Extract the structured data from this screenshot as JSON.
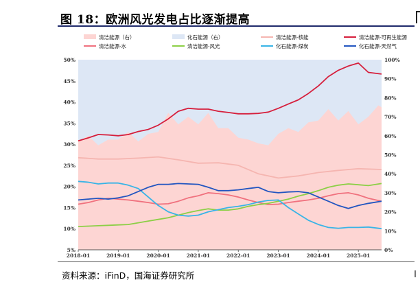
{
  "figure": {
    "title": "图 18：欧洲风光发电占比逐渐提高",
    "source": "资料来源：iFinD，国海证券研究所"
  },
  "colors": {
    "clean_right_area": "#fdd5d3",
    "fossil_right_area": "#dde7f5",
    "nuclear": "#f5b5b0",
    "renewable": "#d61f3c",
    "hydro": "#f0717e",
    "wind_solar": "#8ccf46",
    "coal": "#38b4e6",
    "gas": "#2255c0",
    "axis_text": "#333333",
    "title_rule": "#1f2a6b"
  },
  "chart_data": {
    "type": "line+area",
    "xlabel": "",
    "ylabel_left": "",
    "ylabel_right": "",
    "x_ticks": [
      "2018-01",
      "2019-01",
      "2020-01",
      "2021-01",
      "2022-01",
      "2023-01",
      "2024-01",
      "2025-01"
    ],
    "x_range": [
      2018.0,
      2025.58
    ],
    "y_left_ticks": [
      "50%",
      "45%",
      "40%",
      "35%",
      "30%",
      "25%",
      "20%",
      "15%",
      "10%",
      "5%"
    ],
    "y_left_range": [
      5,
      50
    ],
    "y_right_ticks": [
      "100%",
      "90%",
      "80%",
      "70%",
      "60%",
      "50%",
      "40%",
      "30%",
      "20%",
      "10%",
      "0%"
    ],
    "y_right_range": [
      0,
      100
    ],
    "legend": [
      {
        "label": "清洁能源（右）",
        "kind": "area",
        "series": "clean_right"
      },
      {
        "label": "化石能源（右）",
        "kind": "area",
        "series": "fossil_right"
      },
      {
        "label": "清洁能源-核能",
        "kind": "line",
        "series": "nuclear"
      },
      {
        "label": "清洁能源-可再生能源",
        "kind": "line",
        "series": "renewable"
      },
      {
        "label": "清洁能源-水",
        "kind": "line",
        "series": "hydro"
      },
      {
        "label": "清洁能源-风光",
        "kind": "line",
        "series": "wind_solar"
      },
      {
        "label": "化石能源-煤炭",
        "kind": "line",
        "series": "coal"
      },
      {
        "label": "化石能源-天然气",
        "kind": "line",
        "series": "gas"
      }
    ],
    "series": {
      "clean_right": {
        "name": "清洁能源（右）",
        "axis": "right",
        "x": [
          2018.0,
          2018.25,
          2018.5,
          2018.75,
          2019.0,
          2019.25,
          2019.5,
          2019.75,
          2020.0,
          2020.25,
          2020.5,
          2020.75,
          2021.0,
          2021.25,
          2021.5,
          2021.75,
          2022.0,
          2022.25,
          2022.5,
          2022.75,
          2023.0,
          2023.25,
          2023.5,
          2023.75,
          2024.0,
          2024.25,
          2024.5,
          2024.75,
          2025.0,
          2025.25,
          2025.5,
          2025.58
        ],
        "values": [
          57,
          60,
          55,
          58,
          58,
          62,
          57,
          61,
          62,
          72,
          66,
          70,
          66,
          72,
          64,
          64,
          59,
          58,
          56,
          55,
          61,
          64,
          62,
          67,
          68,
          74,
          68,
          73,
          66,
          70,
          76,
          75
        ]
      },
      "fossil_right": {
        "name": "化石能源（右）",
        "axis": "right",
        "x": [
          2018.0,
          2025.58
        ],
        "values": [
          100,
          100
        ]
      },
      "nuclear": {
        "name": "清洁能源-核能",
        "axis": "left",
        "x": [
          2018.0,
          2018.5,
          2019.0,
          2019.5,
          2020.0,
          2020.5,
          2021.0,
          2021.5,
          2022.0,
          2022.5,
          2023.0,
          2023.5,
          2024.0,
          2024.5,
          2025.0,
          2025.58
        ],
        "values": [
          26.8,
          26.5,
          26.5,
          26.7,
          27.0,
          26.3,
          25.5,
          25.6,
          25.0,
          23.0,
          22.0,
          22.5,
          23.3,
          23.8,
          24.2,
          24.0
        ]
      },
      "renewable": {
        "name": "清洁能源-可再生能源",
        "axis": "left",
        "x": [
          2018.0,
          2018.25,
          2018.5,
          2018.75,
          2019.0,
          2019.25,
          2019.5,
          2019.75,
          2020.0,
          2020.25,
          2020.5,
          2020.75,
          2021.0,
          2021.25,
          2021.5,
          2021.75,
          2022.0,
          2022.25,
          2022.5,
          2022.75,
          2023.0,
          2023.25,
          2023.5,
          2023.75,
          2024.0,
          2024.25,
          2024.5,
          2024.75,
          2025.0,
          2025.25,
          2025.58
        ],
        "values": [
          30.8,
          31.5,
          32.3,
          32.2,
          32.0,
          32.3,
          33.0,
          33.5,
          34.5,
          36.0,
          37.8,
          38.5,
          38.3,
          38.3,
          37.8,
          37.5,
          37.2,
          37.2,
          37.3,
          37.6,
          38.5,
          39.5,
          40.5,
          42.0,
          43.8,
          46.0,
          47.5,
          48.5,
          49.2,
          47.0,
          46.6
        ]
      },
      "hydro": {
        "name": "清洁能源-水",
        "axis": "left",
        "x": [
          2018.0,
          2018.25,
          2018.5,
          2018.75,
          2019.0,
          2019.25,
          2019.5,
          2019.75,
          2020.0,
          2020.25,
          2020.5,
          2020.75,
          2021.0,
          2021.25,
          2021.5,
          2021.75,
          2022.0,
          2022.25,
          2022.5,
          2022.75,
          2023.0,
          2023.25,
          2023.5,
          2023.75,
          2024.0,
          2024.25,
          2024.5,
          2024.75,
          2025.0,
          2025.25,
          2025.58
        ],
        "values": [
          15.8,
          16.2,
          16.8,
          17.2,
          17.0,
          16.8,
          16.5,
          16.2,
          15.8,
          15.9,
          16.5,
          17.3,
          17.8,
          18.5,
          18.3,
          18.0,
          17.5,
          16.8,
          16.2,
          15.7,
          15.8,
          16.2,
          16.5,
          16.8,
          17.2,
          17.8,
          18.3,
          18.5,
          18.0,
          17.2,
          16.5
        ]
      },
      "wind_solar": {
        "name": "清洁能源-风光",
        "axis": "left",
        "x": [
          2018.0,
          2018.25,
          2018.5,
          2018.75,
          2019.0,
          2019.25,
          2019.5,
          2019.75,
          2020.0,
          2020.25,
          2020.5,
          2020.75,
          2021.0,
          2021.25,
          2021.5,
          2021.75,
          2022.0,
          2022.25,
          2022.5,
          2022.75,
          2023.0,
          2023.25,
          2023.5,
          2023.75,
          2024.0,
          2024.25,
          2024.5,
          2024.75,
          2025.0,
          2025.25,
          2025.58
        ],
        "values": [
          10.5,
          10.6,
          10.7,
          10.8,
          10.9,
          11.0,
          11.4,
          11.8,
          12.2,
          12.6,
          13.2,
          13.8,
          14.3,
          14.7,
          14.4,
          14.4,
          14.7,
          15.3,
          15.7,
          16.0,
          16.5,
          17.0,
          17.7,
          18.3,
          19.0,
          19.8,
          20.3,
          20.6,
          20.4,
          20.2,
          20.7
        ]
      },
      "coal": {
        "name": "化石能源-煤炭",
        "axis": "left",
        "x": [
          2018.0,
          2018.25,
          2018.5,
          2018.75,
          2019.0,
          2019.25,
          2019.5,
          2019.75,
          2020.0,
          2020.25,
          2020.5,
          2020.75,
          2021.0,
          2021.25,
          2021.5,
          2021.75,
          2022.0,
          2022.25,
          2022.5,
          2022.75,
          2023.0,
          2023.25,
          2023.5,
          2023.75,
          2024.0,
          2024.25,
          2024.5,
          2024.75,
          2025.0,
          2025.25,
          2025.58
        ],
        "values": [
          21.2,
          21.0,
          20.6,
          20.8,
          20.8,
          20.3,
          19.5,
          17.5,
          15.5,
          14.0,
          13.2,
          13.0,
          13.2,
          14.0,
          14.5,
          15.0,
          15.3,
          15.7,
          16.3,
          16.7,
          16.8,
          15.0,
          13.5,
          12.0,
          11.0,
          10.3,
          10.1,
          10.3,
          10.3,
          10.4,
          10.0
        ]
      },
      "gas": {
        "name": "化石能源-天然气",
        "axis": "left",
        "x": [
          2018.0,
          2018.25,
          2018.5,
          2018.75,
          2019.0,
          2019.25,
          2019.5,
          2019.75,
          2020.0,
          2020.25,
          2020.5,
          2020.75,
          2021.0,
          2021.25,
          2021.5,
          2021.75,
          2022.0,
          2022.25,
          2022.5,
          2022.75,
          2023.0,
          2023.25,
          2023.5,
          2023.75,
          2024.0,
          2024.25,
          2024.5,
          2024.75,
          2025.0,
          2025.25,
          2025.58
        ],
        "values": [
          16.8,
          17.0,
          17.2,
          17.0,
          17.3,
          17.8,
          18.8,
          19.8,
          20.5,
          20.5,
          20.7,
          20.6,
          20.5,
          19.8,
          19.0,
          19.0,
          19.2,
          19.5,
          19.8,
          18.8,
          18.5,
          18.7,
          18.8,
          18.5,
          17.5,
          16.5,
          15.5,
          14.8,
          15.5,
          16.0,
          16.5
        ]
      }
    }
  }
}
